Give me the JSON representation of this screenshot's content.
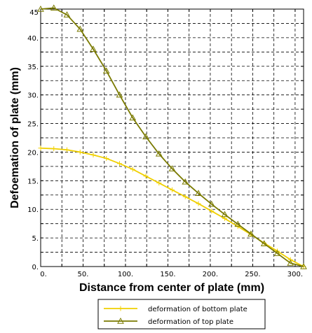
{
  "chart_data": {
    "type": "line",
    "xlabel": "Distance from center of plate (mm)",
    "ylabel": "Defoemation of plate (mm)",
    "xlim": [
      0,
      310
    ],
    "ylim": [
      0,
      45
    ],
    "x_ticks": [
      0,
      50,
      100,
      150,
      200,
      250,
      300
    ],
    "x_tick_labels": [
      "0.",
      "50.",
      "100.",
      "150.",
      "200.",
      "250.",
      "300."
    ],
    "y_ticks": [
      0,
      5,
      10,
      15,
      20,
      25,
      30,
      35,
      40,
      45
    ],
    "y_tick_labels": [
      "0.",
      "5.",
      "10.",
      "15.",
      "20.",
      "25.",
      "30.",
      "35.",
      "40.",
      "45"
    ],
    "grid": true,
    "legend_position": "bottom-center",
    "series": [
      {
        "name": "deformation of bottom plate",
        "color": "#f0d000",
        "marker": "plus",
        "x": [
          0,
          15.5,
          31,
          46.5,
          62,
          77.5,
          93,
          108.5,
          124,
          139.5,
          155,
          170.5,
          186,
          201.5,
          217,
          232.5,
          248,
          263.5,
          279,
          294.5,
          310
        ],
        "y": [
          20.7,
          20.6,
          20.4,
          20.0,
          19.5,
          18.9,
          18.0,
          17.0,
          15.8,
          14.6,
          13.4,
          12.2,
          11.0,
          9.7,
          8.4,
          7.0,
          5.6,
          4.1,
          2.7,
          1.2,
          0.0
        ]
      },
      {
        "name": "deformation of top plate",
        "color": "#7a7a00",
        "marker": "triangle",
        "x": [
          0,
          15.5,
          31,
          46.5,
          62,
          77.5,
          93,
          108.5,
          124,
          139.5,
          155,
          170.5,
          186,
          201.5,
          217,
          232.5,
          248,
          263.5,
          279,
          294.5,
          310
        ],
        "y": [
          45.0,
          45.2,
          44.0,
          41.5,
          38.0,
          34.2,
          30.0,
          26.0,
          22.7,
          19.7,
          17.1,
          14.8,
          12.8,
          10.9,
          9.1,
          7.4,
          5.7,
          4.0,
          2.3,
          0.6,
          0.0
        ]
      }
    ]
  }
}
